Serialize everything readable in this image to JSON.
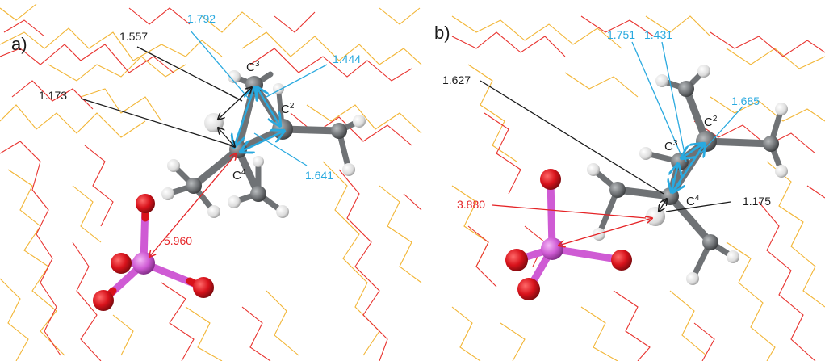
{
  "panels": [
    {
      "id": "a",
      "label": "a)",
      "atoms": {
        "c3": "C",
        "c2": "C",
        "c4": "C",
        "c3_sup": "3",
        "c2_sup": "2",
        "c4_sup": "4"
      },
      "distances": {
        "d1": "1.792",
        "d2": "1.557",
        "d3": "1.444",
        "d4": "1.173",
        "d5": "1.641",
        "d6": "5.960"
      }
    },
    {
      "id": "b",
      "label": "b)",
      "atoms": {
        "c3": "C",
        "c2": "C",
        "c4": "C",
        "c3_sup": "3",
        "c2_sup": "2",
        "c4_sup": "4"
      },
      "distances": {
        "d1": "1.751",
        "d2": "1.431",
        "d3": "1.627",
        "d4": "1.685",
        "d5": "3.880",
        "d6": "1.175"
      }
    }
  ],
  "colors": {
    "framework_o": "#e8322e",
    "framework_si": "#f2b535",
    "carbon": "#6f7275",
    "hydrogen": "#e8e8e8",
    "oxygen": "#d8121b",
    "phosphorus": "#cf5bd4",
    "label_black": "#1a1a1a",
    "label_blue": "#29a9df",
    "label_red": "#e52326"
  }
}
